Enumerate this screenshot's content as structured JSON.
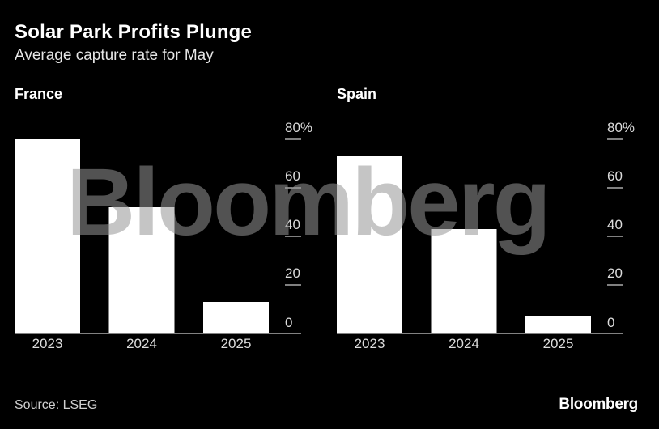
{
  "title": "Solar Park Profits Plunge",
  "subtitle": "Average capture rate for May",
  "source": "Source: LSEG",
  "brand": "Bloomberg",
  "watermark": "Bloomberg",
  "colors": {
    "background": "#000000",
    "bar": "#ffffff",
    "text": "#ffffff",
    "grid": "#ffffff"
  },
  "chart_data": [
    {
      "type": "bar",
      "panel_title": "France",
      "categories": [
        "2023",
        "2024",
        "2025"
      ],
      "values": [
        80,
        52,
        13
      ],
      "ylim": [
        0,
        80
      ],
      "yticks": [
        0,
        20,
        40,
        60,
        80
      ],
      "ytick_labels": [
        "0",
        "20",
        "40",
        "60",
        "80%"
      ],
      "axis_position": "right"
    },
    {
      "type": "bar",
      "panel_title": "Spain",
      "categories": [
        "2023",
        "2024",
        "2025"
      ],
      "values": [
        73,
        43,
        7
      ],
      "ylim": [
        0,
        80
      ],
      "yticks": [
        0,
        20,
        40,
        60,
        80
      ],
      "ytick_labels": [
        "0",
        "20",
        "40",
        "60",
        "80%"
      ],
      "axis_position": "right"
    }
  ]
}
